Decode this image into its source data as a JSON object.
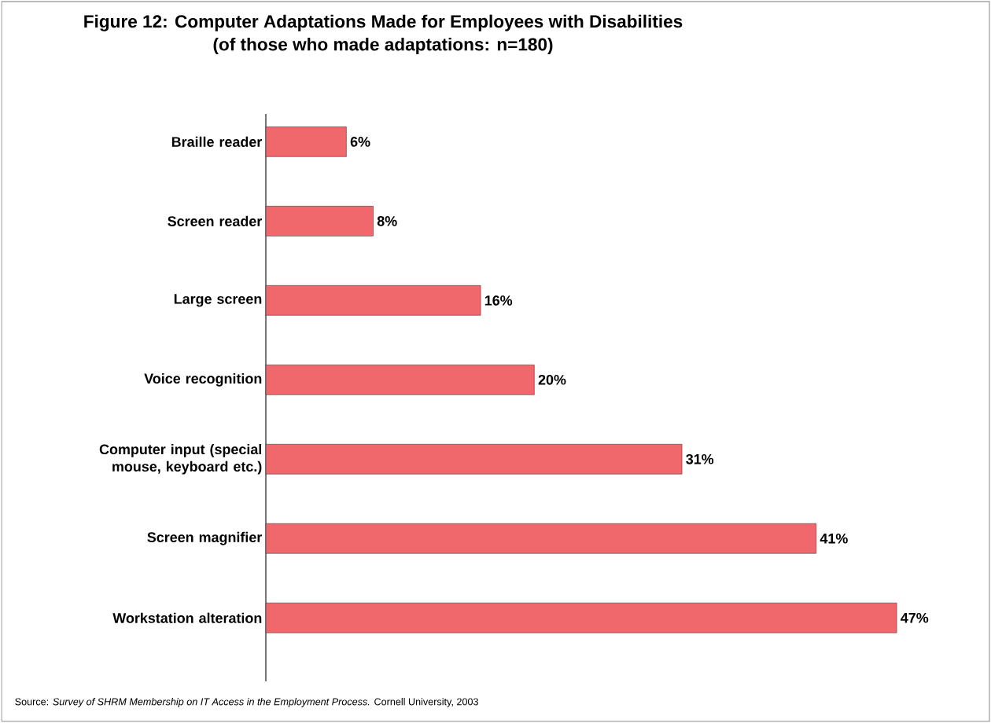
{
  "chart_data": {
    "type": "bar",
    "orientation": "horizontal",
    "title": "Figure 12: Computer Adaptations Made for Employees with Disabilities",
    "subtitle": "(of those who made adaptations: n=180)",
    "categories": [
      "Braille reader",
      "Screen reader",
      "Large screen",
      "Voice recognition",
      "Computer input (special mouse, keyboard etc.)",
      "Screen magnifier",
      "Workstation alteration"
    ],
    "values": [
      6,
      8,
      16,
      20,
      31,
      41,
      47
    ],
    "value_labels": [
      "6%",
      "8%",
      "16%",
      "20%",
      "31%",
      "41%",
      "47%"
    ],
    "color": "#f0676c",
    "annotations": [
      "Source: *Survey of SHRM Membership on IT Access in the Employment Process.* Cornell University, 2003"
    ]
  }
}
